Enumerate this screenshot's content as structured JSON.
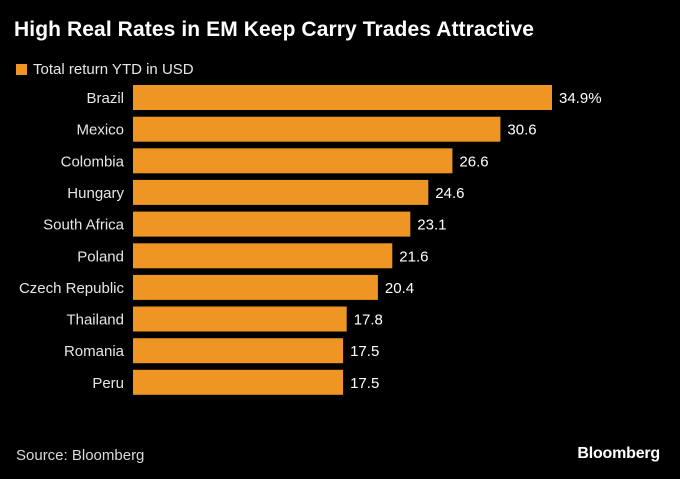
{
  "title": "High Real Rates in EM Keep Carry Trades Attractive",
  "legend": {
    "label": "Total return YTD in USD"
  },
  "source": "Source: Bloomberg",
  "brand": "Bloomberg",
  "colors": {
    "bar": "#ee9524",
    "background": "#000000",
    "text": "#ffffff"
  },
  "chart_data": {
    "type": "bar",
    "orientation": "horizontal",
    "categories": [
      "Brazil",
      "Mexico",
      "Colombia",
      "Hungary",
      "South Africa",
      "Poland",
      "Czech Republic",
      "Thailand",
      "Romania",
      "Peru"
    ],
    "series": [
      {
        "name": "Total return YTD in USD",
        "values": [
          34.9,
          30.6,
          26.6,
          24.6,
          23.1,
          21.6,
          20.4,
          17.8,
          17.5,
          17.5
        ]
      }
    ],
    "value_labels": [
      "34.9%",
      "30.6",
      "26.6",
      "24.6",
      "23.1",
      "21.6",
      "20.4",
      "17.8",
      "17.5",
      "17.5"
    ],
    "xlim": [
      0,
      34.9
    ],
    "grid": false,
    "legend_position": "top-left"
  }
}
